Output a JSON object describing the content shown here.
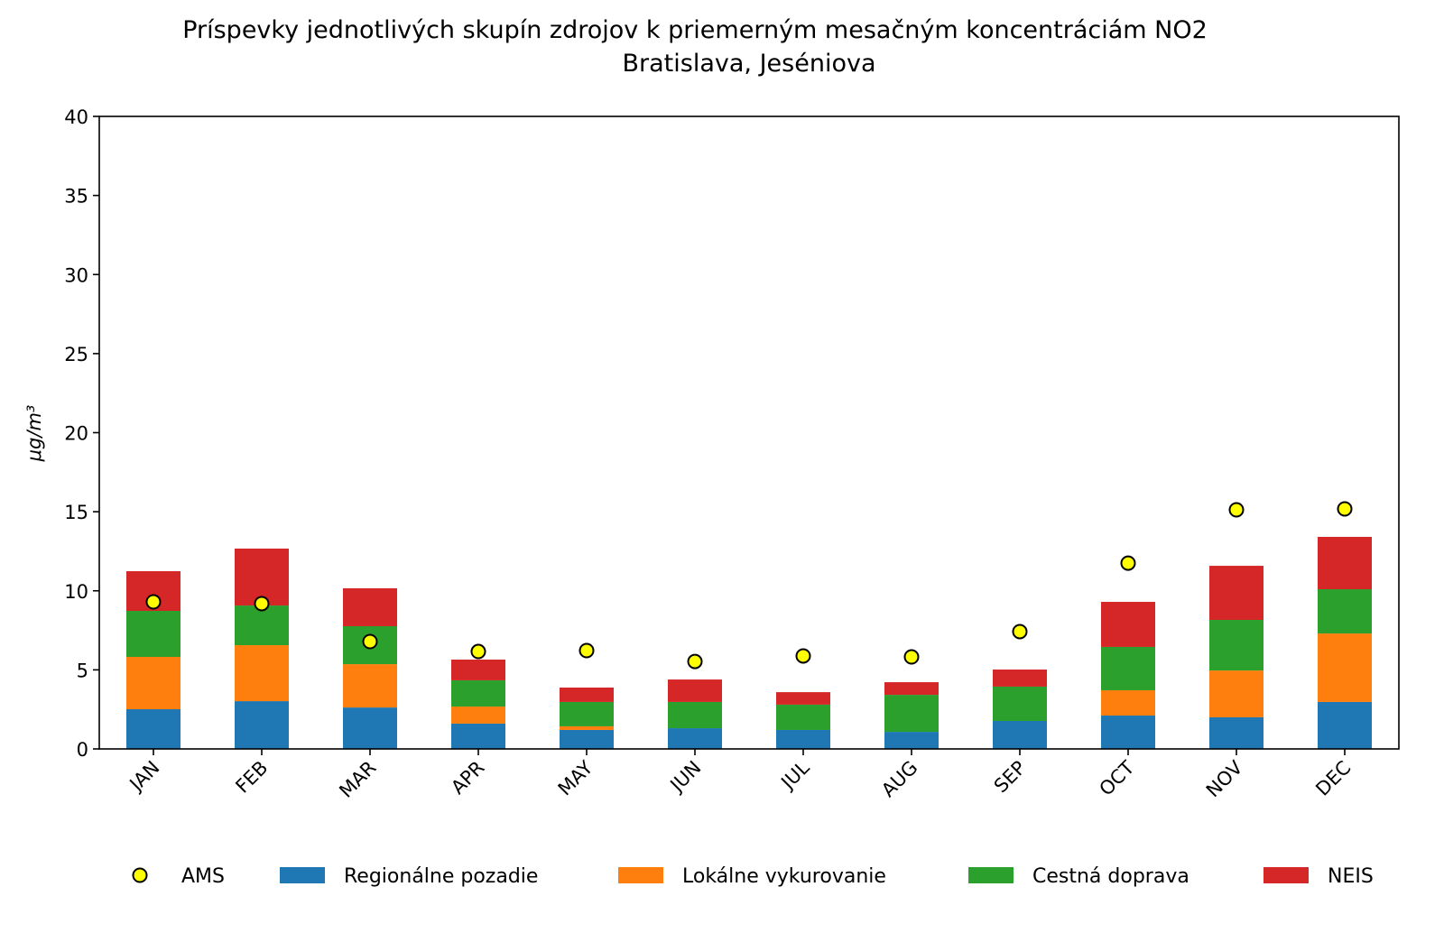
{
  "chart_data": {
    "type": "bar",
    "stacked": true,
    "title": "Príspevky jednotlivých skupín zdrojov k priemerným mesačným koncentráciám NO2",
    "subtitle": "Bratislava, Jeséniova",
    "xlabel": "",
    "ylabel": "μg/m³",
    "ylim": [
      0,
      40
    ],
    "yticks": [
      0,
      5,
      10,
      15,
      20,
      25,
      30,
      35,
      40
    ],
    "grid": false,
    "legend_placement": "bottom",
    "categories": [
      "JAN",
      "FEB",
      "MAR",
      "APR",
      "MAY",
      "JUN",
      "JUL",
      "AUG",
      "SEP",
      "OCT",
      "NOV",
      "DEC"
    ],
    "series": [
      {
        "name": "Regionálne pozadie",
        "color": "#1f77b4",
        "values": [
          2.51,
          3.02,
          2.62,
          1.6,
          1.2,
          1.31,
          1.2,
          1.08,
          1.77,
          2.11,
          2.0,
          2.97
        ]
      },
      {
        "name": "Lokálne vykurovanie",
        "color": "#ff7f0e",
        "values": [
          3.31,
          3.54,
          2.74,
          1.08,
          0.23,
          0,
          0,
          0,
          0,
          1.6,
          2.96,
          4.33
        ]
      },
      {
        "name": "Cestná doprava",
        "color": "#2ca02c",
        "values": [
          2.91,
          2.51,
          2.4,
          1.66,
          1.54,
          1.66,
          1.6,
          2.34,
          2.17,
          2.74,
          3.2,
          2.8
        ]
      },
      {
        "name": "NEIS",
        "color": "#d62728",
        "values": [
          2.51,
          3.6,
          2.4,
          1.31,
          0.91,
          1.42,
          0.79,
          0.8,
          1.08,
          2.85,
          3.42,
          3.31
        ]
      }
    ],
    "points": {
      "name": "AMS",
      "color": "#ffff00",
      "values": [
        9.3,
        9.19,
        6.79,
        6.16,
        6.22,
        5.53,
        5.88,
        5.82,
        7.42,
        11.75,
        15.12,
        15.18
      ]
    }
  }
}
